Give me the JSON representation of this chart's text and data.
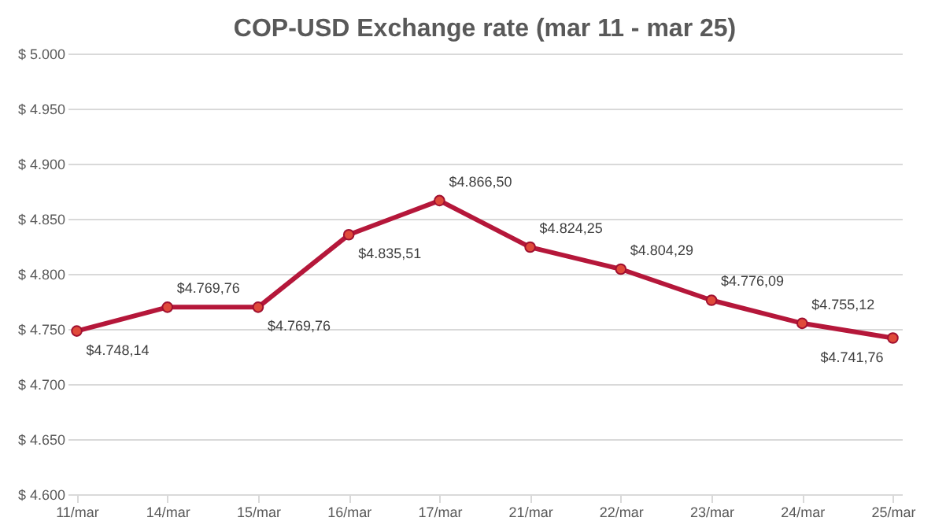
{
  "chart_data": {
    "type": "line",
    "title": "COP-USD Exchange rate (mar 11 - mar 25)",
    "categories": [
      "11/mar",
      "14/mar",
      "15/mar",
      "16/mar",
      "17/mar",
      "21/mar",
      "22/mar",
      "23/mar",
      "24/mar",
      "25/mar"
    ],
    "series": [
      {
        "color": "#b5173a",
        "values": [
          4748.14,
          4769.76,
          4769.76,
          4835.51,
          4866.5,
          4824.25,
          4804.29,
          4776.09,
          4755.12,
          4741.76
        ],
        "value_labels": [
          "$4.748,14",
          "$4.769,76",
          "$4.769,76",
          "$4.835,51",
          "$4.866,50",
          "$4.824,25",
          "$4.804,29",
          "$4.776,09",
          "$4.755,12",
          "$4.741,76"
        ]
      }
    ],
    "ylim": [
      4600,
      5000
    ],
    "yticks": [
      {
        "value": 4600,
        "label": "$ 4.600"
      },
      {
        "value": 4650,
        "label": "$ 4.650"
      },
      {
        "value": 4700,
        "label": "$ 4.700"
      },
      {
        "value": 4750,
        "label": "$ 4.750"
      },
      {
        "value": 4800,
        "label": "$ 4.800"
      },
      {
        "value": 4850,
        "label": "$ 4.850"
      },
      {
        "value": 4900,
        "label": "$ 4.900"
      },
      {
        "value": 4950,
        "label": "$ 4.950"
      },
      {
        "value": 5000,
        "label": "$ 5.000"
      }
    ],
    "grid": "y",
    "marker": "circle",
    "line_style": "solid",
    "legend": false
  }
}
